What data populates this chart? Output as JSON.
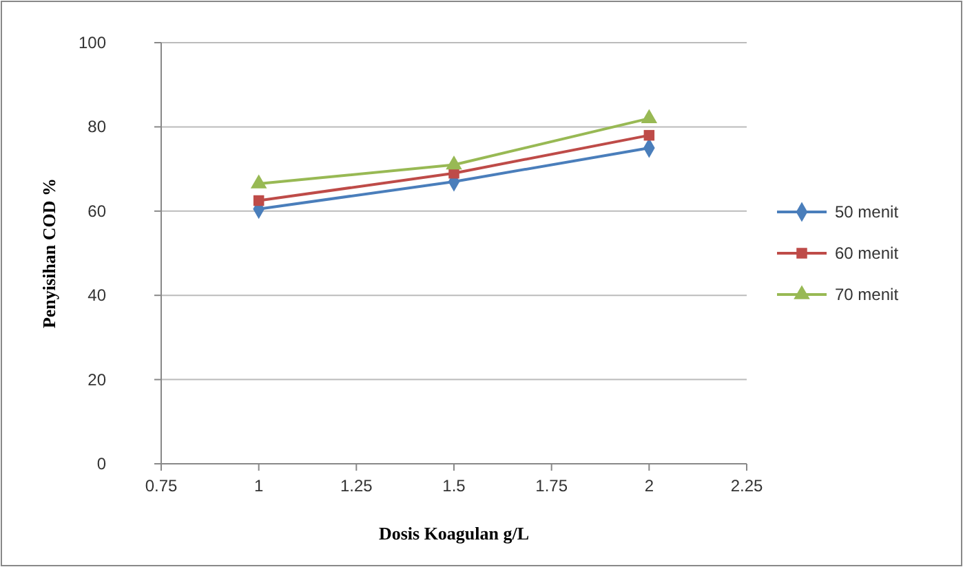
{
  "chart_data": {
    "type": "line",
    "xlabel": "Dosis Koagulan g/L",
    "ylabel": "Penyisihan COD %",
    "x": [
      1,
      1.5,
      2
    ],
    "xlim": [
      0.75,
      2.25
    ],
    "xticks": [
      0.75,
      1,
      1.25,
      1.5,
      1.75,
      2,
      2.25
    ],
    "ylim": [
      0,
      100
    ],
    "yticks": [
      0,
      20,
      40,
      60,
      80,
      100
    ],
    "grid": "y",
    "legend": "right",
    "series": [
      {
        "name": "50 menit",
        "color": "#4a7ebb",
        "marker": "diamond",
        "values": [
          60.5,
          67,
          75
        ]
      },
      {
        "name": "60 menit",
        "color": "#be4b48",
        "marker": "square",
        "values": [
          62.5,
          69,
          78
        ]
      },
      {
        "name": "70 menit",
        "color": "#98b954",
        "marker": "triangle",
        "values": [
          66.5,
          71,
          82
        ]
      }
    ]
  }
}
